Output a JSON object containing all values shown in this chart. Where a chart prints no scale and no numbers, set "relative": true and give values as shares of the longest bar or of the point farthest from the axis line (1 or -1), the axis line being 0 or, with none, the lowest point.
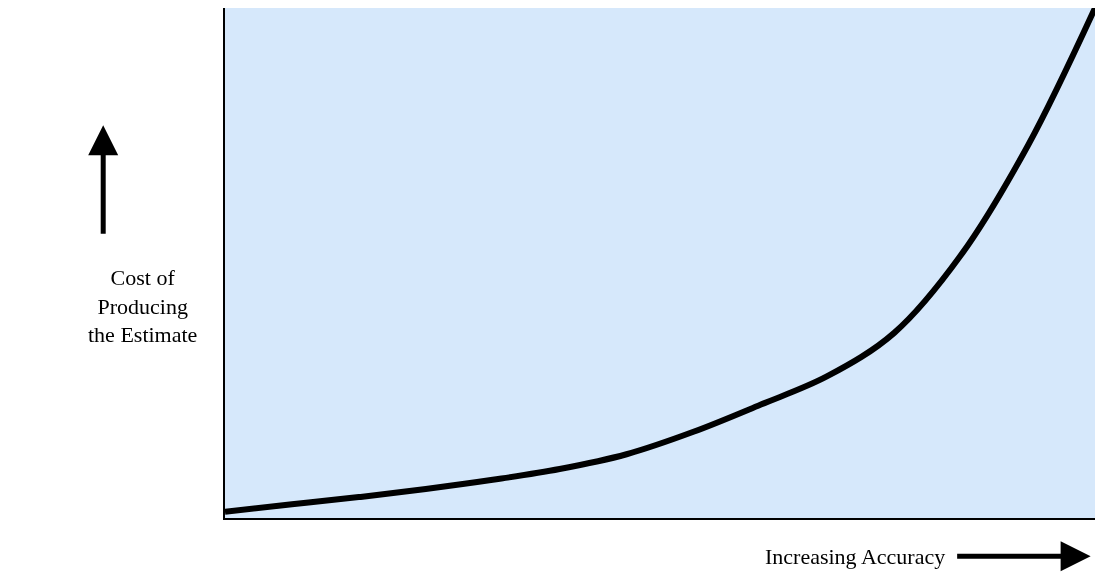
{
  "chart_data": {
    "type": "line",
    "xlabel": "Increasing Accuracy",
    "ylabel": "Cost of\nProducing\nthe Estimate",
    "categories": [
      null,
      null,
      null,
      null,
      null,
      null,
      null,
      null,
      null,
      null,
      null,
      null,
      null,
      null
    ],
    "series": [
      {
        "color": "#000000",
        "values": [
          0.012,
          0.027,
          0.041,
          0.057,
          0.075,
          0.096,
          0.125,
          0.169,
          0.222,
          0.278,
          0.363,
          0.516,
          0.731,
          1.0
        ]
      }
    ],
    "relative": true,
    "grid": false
  }
}
